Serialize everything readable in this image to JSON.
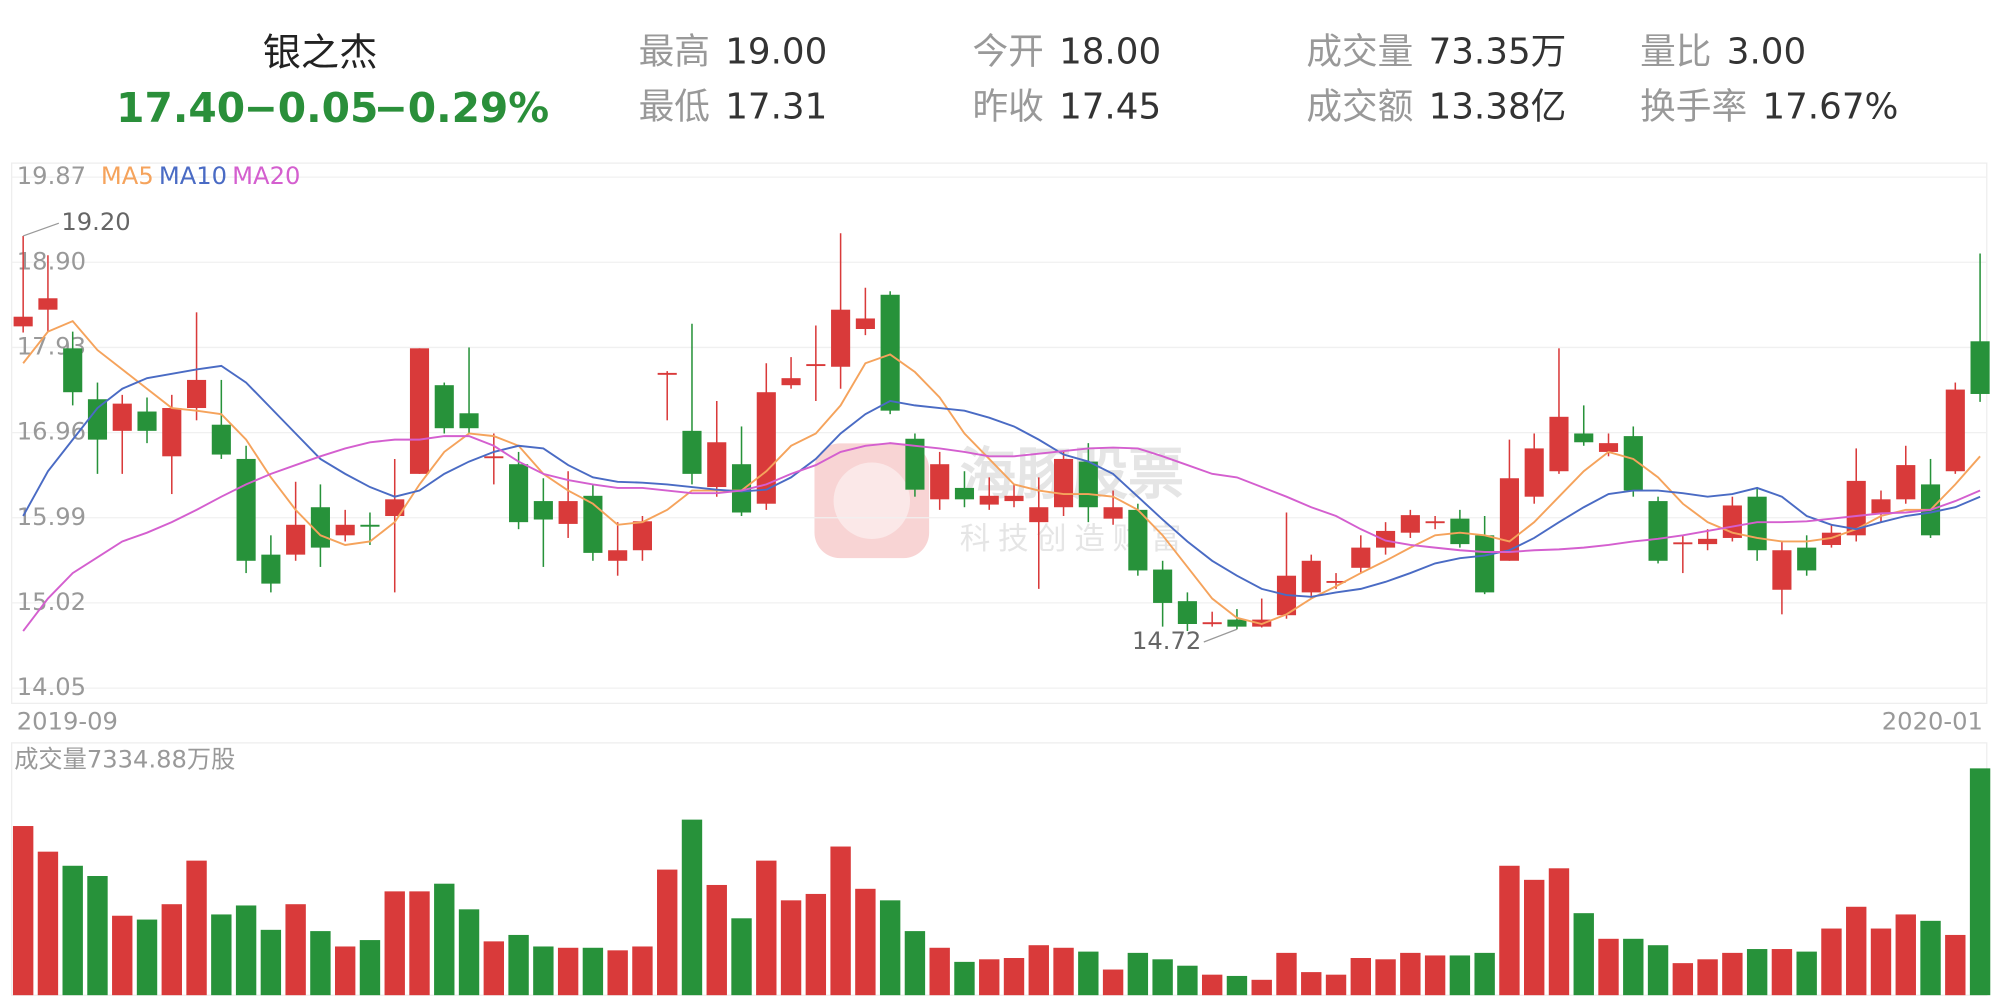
{
  "header": {
    "name": "银之杰",
    "price": "17.40",
    "change": "−0.05",
    "change_pct": "−0.29%",
    "stats": [
      {
        "label": "最高",
        "value": "19.00"
      },
      {
        "label": "最低",
        "value": "17.31"
      },
      {
        "label": "今开",
        "value": "18.00"
      },
      {
        "label": "昨收",
        "value": "17.45"
      },
      {
        "label": "成交量",
        "value": "73.35万"
      },
      {
        "label": "成交额",
        "value": "13.38亿"
      },
      {
        "label": "量比",
        "value": "3.00"
      },
      {
        "label": "换手率",
        "value": "17.67%"
      }
    ]
  },
  "watermark": {
    "title": "海豚股票",
    "slogan": "科技创造财富"
  },
  "chart_data": [
    {
      "type": "candlestick",
      "up_color": "#d93a3a",
      "down_color": "#27923a",
      "grid": true,
      "ylim": [
        14.05,
        19.87
      ],
      "yticks": [
        19.87,
        {
          "value": 18.9,
          "label": "18.90"
        },
        17.93,
        16.96,
        15.99,
        15.02,
        14.05
      ],
      "x_labels": [
        "2019-09",
        "2020-01"
      ],
      "open": [
        18.17,
        18.36,
        17.92,
        17.34,
        16.98,
        17.2,
        16.69,
        17.24,
        17.05,
        16.66,
        15.57,
        15.57,
        16.11,
        15.79,
        15.91,
        16.01,
        16.49,
        17.5,
        17.18,
        16.68,
        16.6,
        16.18,
        15.92,
        16.24,
        15.5,
        15.62,
        17.62,
        16.98,
        16.34,
        16.6,
        16.15,
        17.5,
        17.73,
        17.71,
        18.14,
        18.53,
        16.89,
        16.2,
        16.33,
        16.14,
        16.18,
        15.94,
        16.11,
        16.63,
        15.98,
        16.08,
        15.4,
        15.04,
        14.79,
        14.83,
        14.75,
        14.88,
        15.14,
        15.26,
        15.42,
        15.65,
        15.82,
        15.94,
        15.98,
        15.79,
        15.5,
        16.23,
        16.52,
        16.95,
        16.74,
        16.92,
        16.18,
        15.7,
        15.69,
        15.76,
        16.23,
        15.17,
        15.65,
        15.68,
        15.79,
        16.04,
        16.2,
        16.37,
        16.52,
        18.0
      ],
      "high": [
        19.2,
        18.98,
        18.11,
        17.53,
        17.39,
        17.36,
        17.39,
        18.33,
        17.56,
        16.81,
        15.79,
        16.4,
        16.37,
        16.08,
        16.05,
        16.66,
        17.92,
        17.53,
        17.93,
        16.95,
        16.74,
        16.44,
        16.52,
        16.37,
        15.94,
        16.01,
        17.66,
        18.2,
        17.32,
        17.03,
        17.75,
        17.82,
        18.18,
        19.23,
        18.61,
        18.57,
        16.95,
        16.74,
        16.52,
        16.45,
        16.37,
        16.45,
        16.74,
        16.84,
        16.3,
        16.15,
        15.5,
        15.14,
        14.92,
        14.95,
        15.07,
        16.05,
        15.57,
        15.36,
        15.79,
        15.94,
        16.08,
        16.01,
        16.08,
        16.01,
        16.88,
        16.95,
        17.92,
        17.27,
        16.95,
        17.03,
        16.23,
        15.79,
        15.86,
        16.23,
        16.34,
        15.72,
        15.79,
        15.91,
        16.78,
        16.3,
        16.81,
        16.66,
        17.53,
        19.0
      ],
      "low": [
        18.1,
        18.11,
        17.27,
        16.49,
        16.49,
        16.84,
        16.26,
        17.1,
        16.66,
        15.36,
        15.14,
        15.5,
        15.43,
        15.72,
        15.68,
        15.14,
        16.49,
        16.95,
        16.95,
        16.37,
        15.86,
        15.43,
        15.76,
        15.5,
        15.33,
        15.5,
        17.1,
        16.37,
        16.23,
        16.01,
        16.08,
        17.46,
        17.32,
        17.46,
        18.07,
        17.17,
        16.23,
        16.08,
        16.11,
        16.08,
        16.11,
        15.18,
        16.01,
        15.94,
        15.91,
        15.33,
        14.75,
        14.7,
        14.75,
        14.72,
        14.74,
        14.84,
        15.07,
        15.18,
        15.36,
        15.57,
        15.76,
        15.86,
        15.65,
        15.12,
        15.5,
        16.15,
        16.49,
        16.81,
        16.69,
        16.23,
        15.47,
        15.36,
        15.62,
        15.72,
        15.5,
        14.89,
        15.33,
        15.65,
        15.72,
        15.94,
        16.15,
        15.76,
        16.49,
        17.31
      ],
      "close": [
        18.28,
        18.49,
        17.42,
        16.88,
        17.29,
        16.98,
        17.24,
        17.56,
        16.71,
        15.5,
        15.24,
        15.91,
        15.65,
        15.91,
        15.89,
        16.2,
        17.92,
        17.01,
        17.01,
        16.69,
        15.94,
        15.97,
        16.18,
        15.59,
        15.62,
        15.95,
        17.64,
        16.49,
        16.85,
        16.05,
        17.42,
        17.58,
        17.74,
        18.36,
        18.26,
        17.21,
        16.31,
        16.6,
        16.2,
        16.24,
        16.24,
        16.11,
        16.66,
        16.11,
        16.11,
        15.39,
        15.02,
        14.78,
        14.8,
        14.75,
        14.83,
        15.33,
        15.5,
        15.27,
        15.65,
        15.84,
        16.02,
        15.95,
        15.69,
        15.14,
        16.44,
        16.78,
        17.14,
        16.85,
        16.84,
        16.3,
        15.5,
        15.71,
        15.75,
        16.13,
        15.62,
        15.62,
        15.39,
        15.82,
        16.41,
        16.2,
        16.59,
        15.79,
        17.45,
        17.4
      ],
      "series": [
        {
          "name": "MA5",
          "color": "#f5a35c",
          "values": [
            17.75,
            18.11,
            18.23,
            17.9,
            17.68,
            17.46,
            17.24,
            17.21,
            17.17,
            16.88,
            16.45,
            16.08,
            15.79,
            15.68,
            15.72,
            15.94,
            16.37,
            16.74,
            16.95,
            16.92,
            16.81,
            16.49,
            16.3,
            16.15,
            15.91,
            15.94,
            16.08,
            16.3,
            16.3,
            16.3,
            16.52,
            16.81,
            16.95,
            17.27,
            17.75,
            17.85,
            17.65,
            17.36,
            16.95,
            16.66,
            16.37,
            16.3,
            16.26,
            16.26,
            16.23,
            16.08,
            15.79,
            15.43,
            15.07,
            14.85,
            14.78,
            14.89,
            15.07,
            15.21,
            15.36,
            15.5,
            15.65,
            15.79,
            15.82,
            15.79,
            15.72,
            15.94,
            16.23,
            16.52,
            16.74,
            16.66,
            16.45,
            16.15,
            15.94,
            15.82,
            15.76,
            15.72,
            15.72,
            15.76,
            15.86,
            16.01,
            16.08,
            16.08,
            16.37,
            16.69
          ]
        },
        {
          "name": "MA10",
          "color": "#4a6bc4",
          "values": [
            16.01,
            16.52,
            16.88,
            17.24,
            17.46,
            17.58,
            17.63,
            17.68,
            17.72,
            17.53,
            17.24,
            16.95,
            16.66,
            16.49,
            16.34,
            16.23,
            16.3,
            16.49,
            16.63,
            16.74,
            16.81,
            16.78,
            16.59,
            16.45,
            16.4,
            16.39,
            16.37,
            16.34,
            16.31,
            16.29,
            16.31,
            16.45,
            16.66,
            16.95,
            17.17,
            17.32,
            17.27,
            17.24,
            17.21,
            17.13,
            17.03,
            16.88,
            16.71,
            16.63,
            16.49,
            16.23,
            15.97,
            15.72,
            15.5,
            15.33,
            15.18,
            15.11,
            15.09,
            15.14,
            15.18,
            15.26,
            15.36,
            15.47,
            15.53,
            15.56,
            15.62,
            15.76,
            15.94,
            16.11,
            16.26,
            16.3,
            16.3,
            16.27,
            16.23,
            16.26,
            16.33,
            16.23,
            16.01,
            15.91,
            15.86,
            15.94,
            16.01,
            16.05,
            16.11,
            16.23
          ]
        },
        {
          "name": "MA20",
          "color": "#d45fcf",
          "values": [
            14.7,
            15.07,
            15.36,
            15.54,
            15.72,
            15.82,
            15.94,
            16.08,
            16.23,
            16.37,
            16.49,
            16.59,
            16.69,
            16.78,
            16.85,
            16.88,
            16.88,
            16.92,
            16.92,
            16.81,
            16.63,
            16.49,
            16.42,
            16.37,
            16.33,
            16.33,
            16.3,
            16.27,
            16.27,
            16.3,
            16.37,
            16.49,
            16.59,
            16.74,
            16.81,
            16.84,
            16.81,
            16.78,
            16.74,
            16.69,
            16.69,
            16.72,
            16.75,
            16.78,
            16.79,
            16.78,
            16.69,
            16.59,
            16.49,
            16.45,
            16.34,
            16.23,
            16.11,
            16.01,
            15.86,
            15.73,
            15.68,
            15.65,
            15.62,
            15.6,
            15.6,
            15.62,
            15.63,
            15.65,
            15.68,
            15.72,
            15.75,
            15.79,
            15.84,
            15.89,
            15.94,
            15.94,
            15.95,
            15.98,
            16.01,
            16.04,
            16.05,
            16.08,
            16.18,
            16.3
          ]
        }
      ],
      "annotations": [
        {
          "value": 19.2,
          "label": "19.20"
        },
        {
          "value": 14.72,
          "label": "14.72"
        }
      ]
    },
    {
      "type": "bar",
      "title": "成交量7334.88万股",
      "ylim": [
        0,
        7334.88
      ],
      "values": [
        5470,
        4641,
        4185,
        3854,
        2569,
        2445,
        2942,
        4351,
        2611,
        2901,
        2113,
        2942,
        2072,
        1575,
        1782,
        3357,
        3357,
        3605,
        2776,
        1740,
        1948,
        1575,
        1533,
        1533,
        1450,
        1575,
        4061,
        5677,
        3564,
        2486,
        4351,
        3067,
        3274,
        4807,
        3440,
        3067,
        2072,
        1533,
        1077,
        1160,
        1202,
        1616,
        1533,
        1409,
        829,
        1368,
        1160,
        953,
        663,
        622,
        497,
        1368,
        746,
        663,
        1202,
        1160,
        1368,
        1285,
        1285,
        1368,
        4185,
        3730,
        4103,
        2652,
        1823,
        1823,
        1616,
        1036,
        1160,
        1368,
        1492,
        1492,
        1409,
        2155,
        2859,
        2155,
        2611,
        2404,
        1948,
        7334.88
      ]
    }
  ]
}
